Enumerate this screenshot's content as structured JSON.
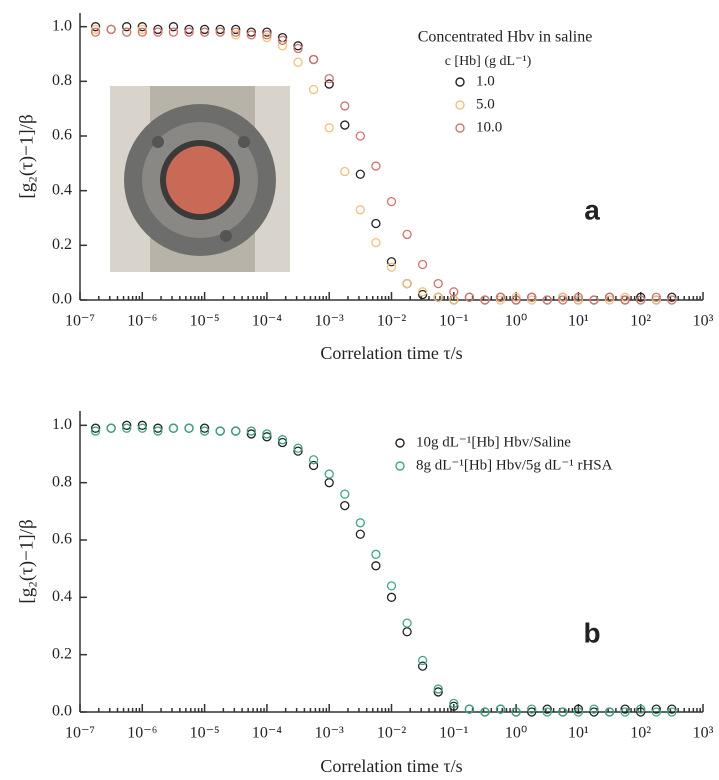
{
  "chart_data": [
    {
      "type": "scatter",
      "panel_label": "a",
      "xlabel": "Correlation time τ/s",
      "ylabel": "[g₂(τ)−1]/β",
      "xscale": "log",
      "xlim": [
        1e-07,
        1000
      ],
      "ylim": [
        0,
        1.05
      ],
      "xticks": [
        {
          "value": 1e-07,
          "label": "10⁻⁷"
        },
        {
          "value": 1e-06,
          "label": "10⁻⁶"
        },
        {
          "value": 1e-05,
          "label": "10⁻⁵"
        },
        {
          "value": 0.0001,
          "label": "10⁻⁴"
        },
        {
          "value": 0.001,
          "label": "10⁻³"
        },
        {
          "value": 0.01,
          "label": "10⁻²"
        },
        {
          "value": 0.1,
          "label": "10⁻¹"
        },
        {
          "value": 1,
          "label": "10⁰"
        },
        {
          "value": 10,
          "label": "10¹"
        },
        {
          "value": 100,
          "label": "10²"
        },
        {
          "value": 1000,
          "label": "10³"
        }
      ],
      "yticks": [
        {
          "value": 0,
          "label": "0.0"
        },
        0.2,
        0.4,
        0.6,
        0.8,
        {
          "value": 1,
          "label": "1.0"
        }
      ],
      "legend": "upper right",
      "legend_title": "Concentrated Hbv in saline",
      "legend_subtitle": "c [Hb] (g dL⁻¹)",
      "x": [
        1.78e-07,
        3.16e-07,
        5.62e-07,
        1e-06,
        1.78e-06,
        3.16e-06,
        5.62e-06,
        1e-05,
        1.78e-05,
        3.16e-05,
        5.62e-05,
        0.0001,
        0.000178,
        0.000316,
        0.000562,
        0.001,
        0.00178,
        0.00316,
        0.00562,
        0.01,
        0.0178,
        0.0316,
        0.0562,
        0.1,
        0.178,
        0.316,
        0.562,
        1,
        1.78,
        3.16,
        5.62,
        10,
        17.8,
        31.6,
        56.2,
        100,
        178,
        316
      ],
      "series": [
        {
          "name": "1.0",
          "color": "#222222",
          "values": [
            1.0,
            0.99,
            1.0,
            1.0,
            0.99,
            1.0,
            0.99,
            0.99,
            0.99,
            0.99,
            0.98,
            0.98,
            0.96,
            0.93,
            0.88,
            0.79,
            0.64,
            0.46,
            0.28,
            0.14,
            0.06,
            0.02,
            0.01,
            0,
            0.01,
            0,
            0.01,
            0,
            0.01,
            0,
            0.01,
            0,
            0,
            0.01,
            0,
            0.01,
            0,
            0.01
          ]
        },
        {
          "name": "5.0",
          "color": "#efc27a",
          "values": [
            0.99,
            0.99,
            0.98,
            0.99,
            0.98,
            0.98,
            0.98,
            0.98,
            0.98,
            0.97,
            0.97,
            0.96,
            0.93,
            0.87,
            0.77,
            0.63,
            0.47,
            0.33,
            0.21,
            0.12,
            0.06,
            0.03,
            0.01,
            0,
            0.01,
            0,
            0,
            0.01,
            0,
            0,
            0.01,
            0,
            0,
            0,
            0.01,
            0,
            0,
            0
          ]
        },
        {
          "name": "10.0",
          "color": "#d27272",
          "values": [
            0.98,
            0.99,
            0.98,
            0.98,
            0.98,
            0.98,
            0.98,
            0.98,
            0.98,
            0.98,
            0.97,
            0.97,
            0.95,
            0.92,
            0.88,
            0.81,
            0.71,
            0.6,
            0.49,
            0.36,
            0.24,
            0.13,
            0.06,
            0.03,
            0.01,
            0,
            0.01,
            0,
            0.01,
            0,
            0,
            0.01,
            0,
            0.01,
            0,
            0,
            0.01,
            0
          ]
        }
      ]
    },
    {
      "type": "scatter",
      "panel_label": "b",
      "xlabel": "Correlation time τ/s",
      "ylabel": "[g₂(τ)−1]/β",
      "xscale": "log",
      "xlim": [
        1e-07,
        1000
      ],
      "ylim": [
        0,
        1.05
      ],
      "xticks": [
        {
          "value": 1e-07,
          "label": "10⁻⁷"
        },
        {
          "value": 1e-06,
          "label": "10⁻⁶"
        },
        {
          "value": 1e-05,
          "label": "10⁻⁵"
        },
        {
          "value": 0.0001,
          "label": "10⁻⁴"
        },
        {
          "value": 0.001,
          "label": "10⁻³"
        },
        {
          "value": 0.01,
          "label": "10⁻²"
        },
        {
          "value": 0.1,
          "label": "10⁻¹"
        },
        {
          "value": 1,
          "label": "10⁰"
        },
        {
          "value": 10,
          "label": "10¹"
        },
        {
          "value": 100,
          "label": "10²"
        },
        {
          "value": 1000,
          "label": "10³"
        }
      ],
      "yticks": [
        {
          "value": 0,
          "label": "0.0"
        },
        0.2,
        0.4,
        0.6,
        0.8,
        {
          "value": 1,
          "label": "1.0"
        }
      ],
      "legend": "upper right",
      "x": [
        1.78e-07,
        3.16e-07,
        5.62e-07,
        1e-06,
        1.78e-06,
        3.16e-06,
        5.62e-06,
        1e-05,
        1.78e-05,
        3.16e-05,
        5.62e-05,
        0.0001,
        0.000178,
        0.000316,
        0.000562,
        0.001,
        0.00178,
        0.00316,
        0.00562,
        0.01,
        0.0178,
        0.0316,
        0.0562,
        0.1,
        0.178,
        0.316,
        0.562,
        1,
        1.78,
        3.16,
        5.62,
        10,
        17.8,
        31.6,
        56.2,
        100,
        178,
        316
      ],
      "series": [
        {
          "name": "10g dL⁻¹[Hb] Hbv/Saline",
          "color": "#222222",
          "values": [
            0.99,
            0.99,
            1.0,
            1.0,
            0.99,
            0.99,
            0.99,
            0.99,
            0.98,
            0.98,
            0.97,
            0.96,
            0.94,
            0.91,
            0.86,
            0.8,
            0.72,
            0.62,
            0.51,
            0.4,
            0.28,
            0.16,
            0.07,
            0.02,
            0.01,
            0,
            0.01,
            0,
            0,
            0.01,
            0,
            0.01,
            0,
            0,
            0.01,
            0,
            0.01,
            0.01
          ]
        },
        {
          "name": "8g dL⁻¹[Hb] Hbv/5g dL⁻¹ rHSA",
          "color": "#3fa585",
          "values": [
            0.98,
            0.99,
            0.99,
            0.99,
            0.98,
            0.99,
            0.99,
            0.98,
            0.98,
            0.98,
            0.98,
            0.97,
            0.95,
            0.92,
            0.88,
            0.83,
            0.76,
            0.66,
            0.55,
            0.44,
            0.31,
            0.18,
            0.08,
            0.03,
            0.01,
            0,
            0.01,
            0,
            0.01,
            0,
            0,
            0,
            0.01,
            0,
            0,
            0.01,
            0,
            0
          ]
        }
      ]
    }
  ]
}
